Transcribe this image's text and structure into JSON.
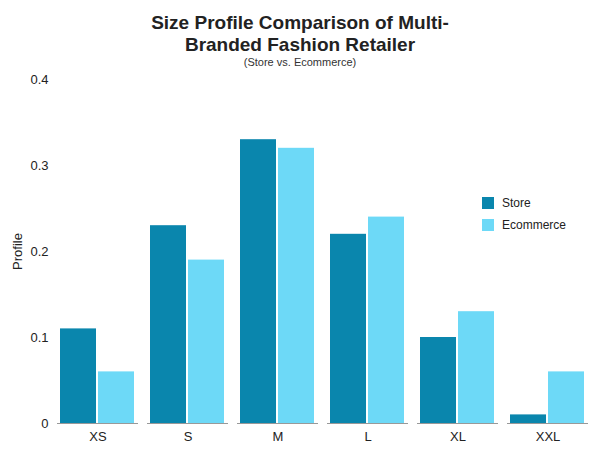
{
  "chart_data": {
    "type": "bar",
    "title": "Size Profile Comparison of Multi-Branded Fashion Retailer",
    "subtitle": "(Store vs. Ecommerce)",
    "y_label": "Profile",
    "categories": [
      "XS",
      "S",
      "M",
      "L",
      "XL",
      "XXL"
    ],
    "series": [
      {
        "name": "Store",
        "color": "#0a86ad",
        "values": [
          0.11,
          0.23,
          0.33,
          0.22,
          0.1,
          0.01
        ]
      },
      {
        "name": "Ecommerce",
        "color": "#6dd9f7",
        "values": [
          0.06,
          0.19,
          0.32,
          0.24,
          0.13,
          0.06
        ]
      }
    ],
    "ylim": [
      0,
      0.4
    ],
    "yticks": [
      0,
      0.1,
      0.2,
      0.3,
      0.4
    ],
    "grid": false,
    "legend": "right"
  }
}
